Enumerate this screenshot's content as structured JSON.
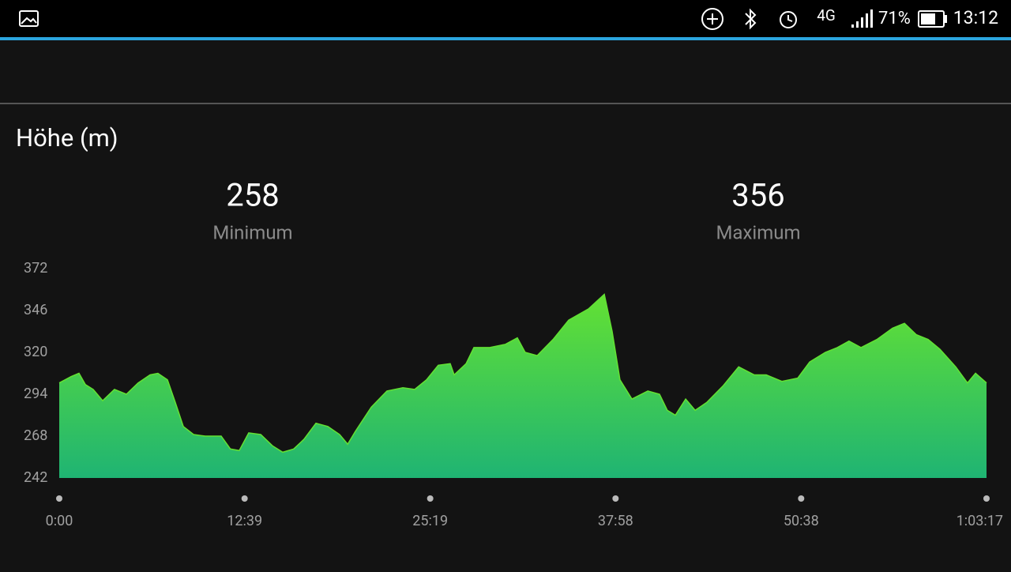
{
  "status_bar": {
    "network": "4G",
    "battery": "71%",
    "time": "13:12"
  },
  "chart_data": {
    "type": "area",
    "title": "Höhe (m)",
    "stats": [
      {
        "value": 258,
        "label": "Minimum"
      },
      {
        "value": 356,
        "label": "Maximum"
      }
    ],
    "x": [
      0,
      49,
      81,
      107,
      139,
      178,
      226,
      275,
      323,
      372,
      404,
      443,
      475,
      508,
      550,
      598,
      663,
      701,
      737,
      776,
      825,
      873,
      915,
      960,
      1002,
      1051,
      1100,
      1148,
      1181,
      1213,
      1278,
      1342,
      1407,
      1455,
      1504,
      1552,
      1601,
      1617,
      1666,
      1698,
      1763,
      1827,
      1876,
      1908,
      1957,
      2022,
      2086,
      2167,
      2232,
      2264,
      2296,
      2345,
      2410,
      2458,
      2490,
      2523,
      2565,
      2604,
      2652,
      2717,
      2782,
      2846,
      2895,
      2959,
      3024,
      3073,
      3137,
      3186,
      3234,
      3283,
      3348,
      3412,
      3461,
      3509,
      3558,
      3606,
      3671,
      3719,
      3752,
      3797
    ],
    "values": [
      301,
      305,
      307,
      300,
      297,
      290,
      297,
      294,
      301,
      306,
      307,
      303,
      289,
      274,
      269,
      268,
      268,
      260,
      259,
      270,
      269,
      262,
      258,
      260,
      266,
      276,
      274,
      269,
      263,
      271,
      286,
      296,
      298,
      297,
      303,
      312,
      313,
      306,
      313,
      323,
      323,
      325,
      329,
      320,
      318,
      328,
      340,
      347,
      356,
      333,
      303,
      291,
      296,
      294,
      284,
      281,
      291,
      284,
      289,
      299,
      311,
      306,
      306,
      302,
      304,
      314,
      320,
      323,
      327,
      323,
      328,
      335,
      338,
      331,
      328,
      322,
      311,
      301,
      307,
      301
    ],
    "colors": [
      "#63e133",
      "#1fb473"
    ],
    "xlim": [
      0,
      3797
    ],
    "xticks": [
      {
        "value": 0,
        "label": "0:00"
      },
      {
        "value": 759,
        "label": "12:39"
      },
      {
        "value": 1519,
        "label": "25:19"
      },
      {
        "value": 2278,
        "label": "37:58"
      },
      {
        "value": 3038,
        "label": "50:38"
      },
      {
        "value": 3797,
        "label": "1:03:17"
      }
    ],
    "ylim": [
      242,
      372
    ],
    "yticks": [
      242,
      268,
      294,
      320,
      346,
      372
    ]
  }
}
